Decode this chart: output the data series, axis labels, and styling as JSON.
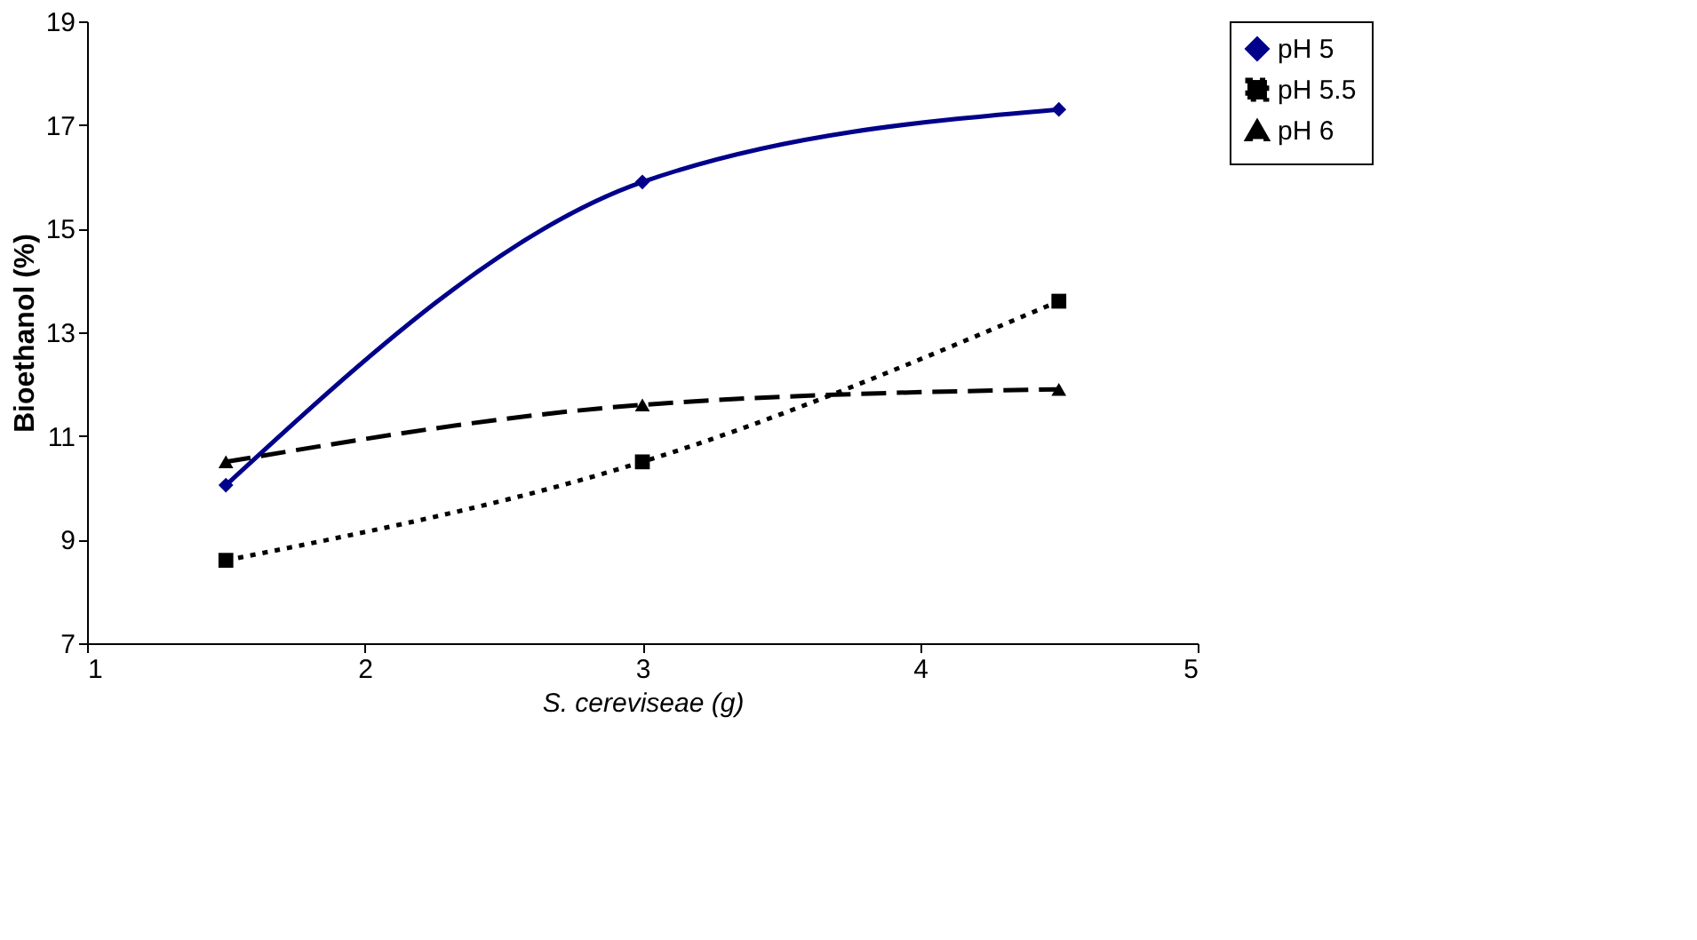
{
  "chart_data": {
    "type": "line",
    "xlabel": "S. cereviseae (g)",
    "ylabel": "Bioethanol (%)",
    "x": [
      1.5,
      3,
      4.5
    ],
    "series": [
      {
        "name": "pH 5",
        "color": "#00008b",
        "values": [
          10.05,
          15.9,
          17.3
        ],
        "marker": "diamond",
        "line_style": "solid"
      },
      {
        "name": "pH 5.5",
        "color": "#000000",
        "values": [
          8.6,
          10.5,
          13.6
        ],
        "marker": "square",
        "line_style": "dotted"
      },
      {
        "name": "pH 6",
        "color": "#000000",
        "values": [
          10.5,
          11.6,
          11.9
        ],
        "marker": "triangle",
        "line_style": "dashed"
      }
    ],
    "xlim": [
      1,
      5
    ],
    "xticks": [
      1,
      2,
      3,
      4,
      5
    ],
    "ylim": [
      7,
      19
    ],
    "yticks": [
      7,
      9,
      11,
      13,
      15,
      17,
      19
    ],
    "grid": false,
    "legend": "right"
  }
}
